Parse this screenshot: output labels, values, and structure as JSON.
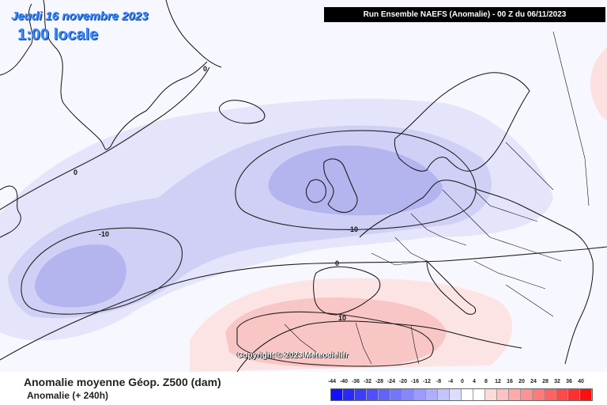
{
  "header": {
    "date": "Jeudi 16 novembre 2023",
    "local_time": "1:00 locale",
    "run_info": "Run Ensemble NAEFS  (Anomalie)  - 00 Z du 06/11/2023"
  },
  "watermark": "Copyright © 2023 Meteociel.fr",
  "contour_labels": [
    "0",
    "0",
    "-10",
    "-10",
    "0",
    "10"
  ],
  "footer": {
    "title": "Anomalie moyenne Géop. Z500 (dam)",
    "subtitle": "Anomalie (+ 240h)"
  },
  "legend": {
    "labels": [
      "-44",
      "-40",
      "-36",
      "-32",
      "-28",
      "-24",
      "-20",
      "-16",
      "-12",
      "-8",
      "-4",
      "0",
      "4",
      "8",
      "12",
      "16",
      "20",
      "24",
      "28",
      "32",
      "36",
      "40"
    ],
    "colors": [
      "#1010ff",
      "#2828ff",
      "#3c3cff",
      "#5050ff",
      "#6262ff",
      "#7474ff",
      "#8686ff",
      "#9a9aff",
      "#aeaeff",
      "#c4c4ff",
      "#dcdcff",
      "#ffffff",
      "#ffffff",
      "#ffdada",
      "#ffc2c2",
      "#ffaaaa",
      "#ff9292",
      "#ff7a7a",
      "#ff6262",
      "#ff4a4a",
      "#ff3030",
      "#ff1010"
    ]
  },
  "colors": {
    "negative_weak": "#dcdcf8",
    "negative_mid": "#c4c4f4",
    "negative_strong": "#a6a6ee",
    "positive_weak": "#fde6e6",
    "positive_mid": "#f9c8c8",
    "title_blue": "#3b8cff"
  }
}
